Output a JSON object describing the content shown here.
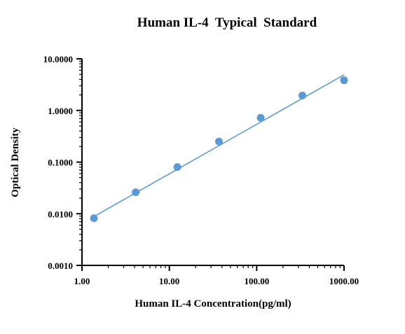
{
  "chart_data": {
    "type": "scatter",
    "title": "Human IL-4  Typical  Standard",
    "xlabel": "Human IL-4 Concentration(pg/ml)",
    "ylabel": "Optical Density",
    "x_scale": "log",
    "y_scale": "log",
    "xlim": [
      1,
      1000
    ],
    "ylim": [
      0.001,
      10
    ],
    "x_ticks": [
      1,
      10,
      100,
      1000
    ],
    "x_tick_labels": [
      "1.00",
      "10.00",
      "100.00",
      "1000.00"
    ],
    "y_ticks": [
      0.001,
      0.01,
      0.1,
      1,
      10
    ],
    "y_tick_labels": [
      "0.0010",
      "0.0100",
      "0.1000",
      "1.0000",
      "10.0000"
    ],
    "grid": false,
    "series": [
      {
        "type": "scatter",
        "x": [
          1.37,
          4.12,
          12.35,
          37.04,
          111.1,
          333.3,
          1000
        ],
        "y": [
          0.0082,
          0.026,
          0.08,
          0.25,
          0.72,
          1.95,
          3.85
        ]
      },
      {
        "type": "line",
        "x": [
          1.37,
          1000
        ],
        "y": [
          0.0088,
          4.9
        ]
      }
    ],
    "colors": {
      "marker": "#5B9BD5",
      "line": "#5B9BD5",
      "axis": "#000000"
    }
  }
}
